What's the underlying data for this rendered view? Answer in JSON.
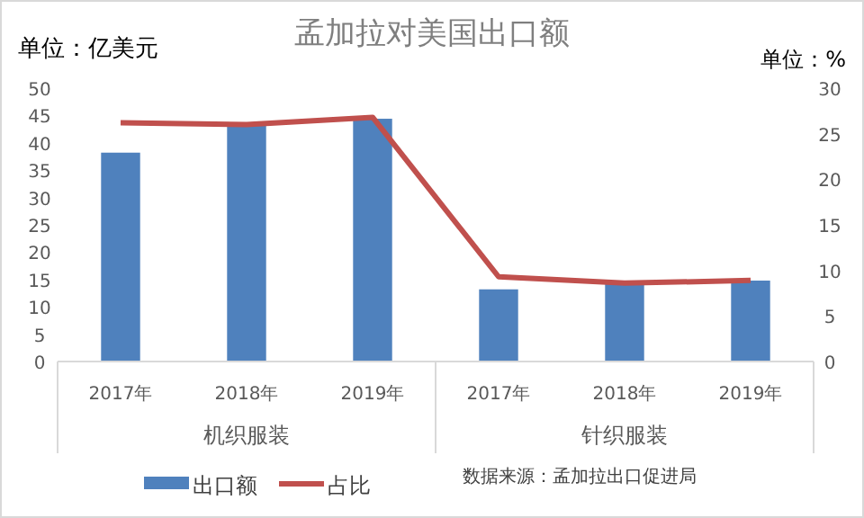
{
  "chart_data": {
    "type": "bar",
    "title": "孟加拉对美国出口额",
    "ylabel": "单位：亿美元",
    "y2label": "单位：%",
    "categories": [
      "2017年",
      "2018年",
      "2019年",
      "2017年",
      "2018年",
      "2019年"
    ],
    "series": [
      {
        "name": "出口额",
        "color": "#4f81bd",
        "values": [
          38.2,
          43.4,
          44.4,
          13.2,
          14.8,
          14.8
        ]
      },
      {
        "name": "占比",
        "type": "line",
        "axis": "y2",
        "color": "#c0504d",
        "values": [
          26.2,
          26,
          26.8,
          9.3,
          8.6,
          8.9
        ]
      }
    ],
    "ylim": [
      0,
      50
    ],
    "yticks": [
      0,
      5,
      10,
      15,
      20,
      25,
      30,
      35,
      40,
      45,
      50
    ],
    "y2lim": [
      0,
      30
    ],
    "y2ticks": [
      0,
      5,
      10,
      15,
      20,
      25,
      30
    ],
    "annotations": [
      "机织服装",
      "针织服装",
      "数据来源：孟加拉出口促进局"
    ],
    "legend": "bottom",
    "grid": false,
    "marker": "none"
  }
}
